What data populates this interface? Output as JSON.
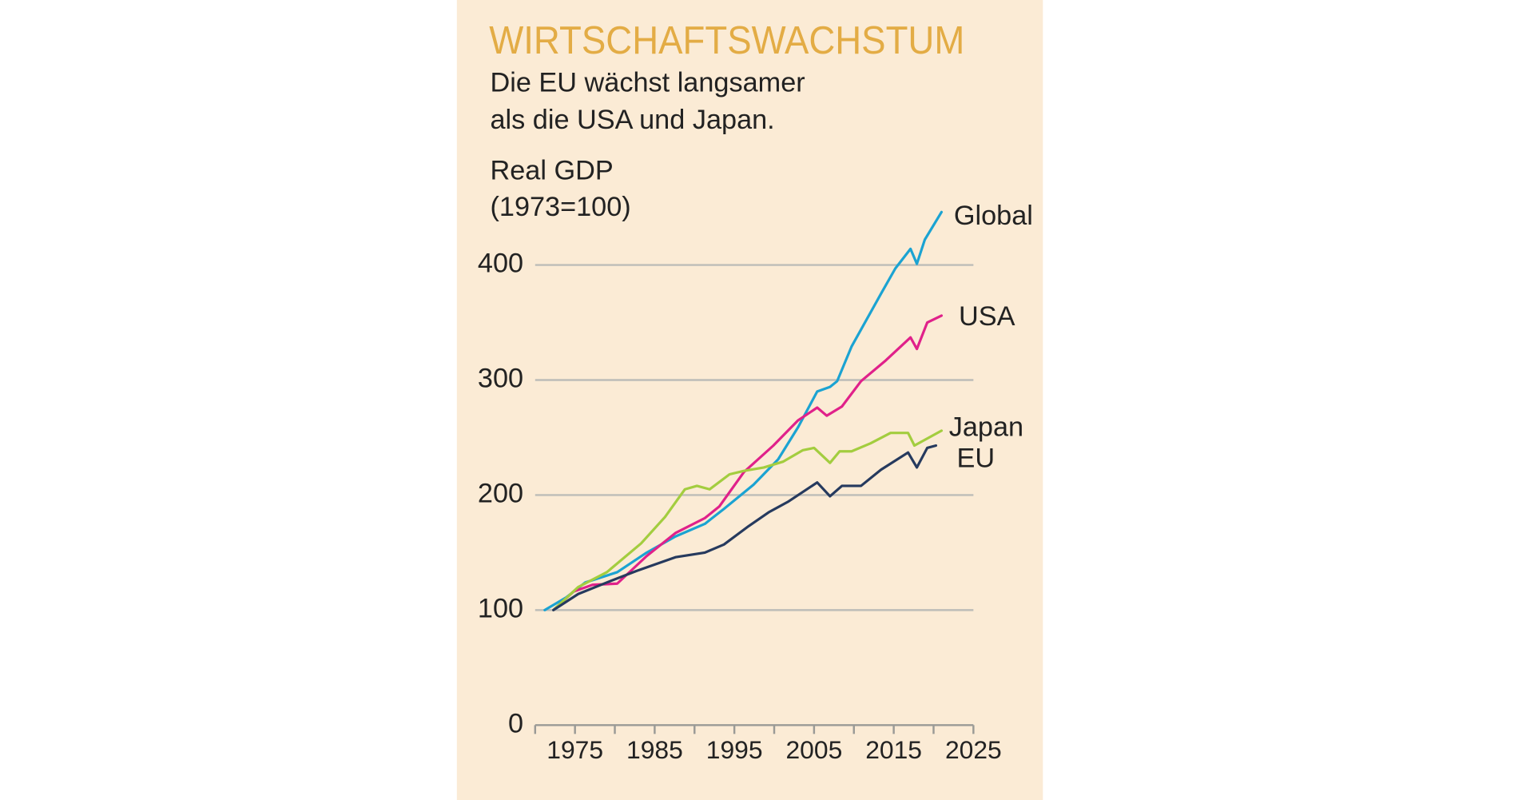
{
  "chart_data": {
    "type": "line",
    "title": "WIRTSCHAFTSWACHSTUM",
    "subtitle": [
      "Die EU wächst langsamer",
      "als die USA und Japan."
    ],
    "ylabel": [
      "Real GDP",
      "(1973=100)"
    ],
    "xlim": [
      1970,
      2025
    ],
    "xticks": [
      1975,
      1985,
      1995,
      2005,
      2015,
      2025
    ],
    "ylim": [
      0,
      450
    ],
    "yticks": [
      0,
      100,
      200,
      300,
      400
    ],
    "grid": true,
    "series": [
      {
        "name": "Global",
        "color": "#1ba3d2",
        "x": [
          1971.2,
          1973.9,
          1976.3,
          1980.3,
          1984,
          1987.6,
          1991.3,
          1993.7,
          1997.4,
          2000.5,
          2003,
          2005.4,
          2007,
          2007.9,
          2009.7,
          2013.4,
          2015.2,
          2017.1,
          2017.9,
          2018.9,
          2021
        ],
        "values": [
          100,
          111,
          124,
          133,
          150,
          164,
          175,
          188,
          209,
          231,
          259,
          290,
          294,
          299,
          329,
          375,
          397,
          414,
          401,
          422,
          446
        ]
      },
      {
        "name": "USA",
        "color": "#e0218a",
        "x": [
          1972.3,
          1974.8,
          1977.2,
          1980.3,
          1984,
          1987.6,
          1991.3,
          1993.1,
          1996.2,
          1999.9,
          2003,
          2005.4,
          2006.6,
          2008.5,
          2010.9,
          2014,
          2017.1,
          2017.9,
          2019.2,
          2021
        ],
        "values": [
          100,
          116,
          122,
          123,
          147,
          167,
          180,
          190,
          220,
          243,
          265,
          276,
          269,
          277,
          299,
          317,
          337,
          327,
          350,
          356
        ]
      },
      {
        "name": "Japan",
        "color": "#a3cd3f",
        "x": [
          1972.3,
          1975.4,
          1979,
          1983.3,
          1986.3,
          1988.8,
          1990.3,
          1991.9,
          1994.4,
          1996.2,
          1998.7,
          2001.1,
          2003.6,
          2005,
          2007,
          2008.2,
          2009.7,
          2012.1,
          2014.6,
          2016.8,
          2017.6,
          2021
        ],
        "values": [
          100,
          120,
          133,
          158,
          181,
          205,
          208,
          205,
          218,
          221,
          224,
          229,
          239,
          241,
          228,
          238,
          238,
          245,
          254,
          254,
          243,
          256
        ]
      },
      {
        "name": "EU",
        "color": "#263a5e",
        "x": [
          1972.3,
          1975.4,
          1979,
          1982.7,
          1987.6,
          1991.3,
          1993.7,
          1996.8,
          1999.3,
          2001.7,
          2005.4,
          2007,
          2008.5,
          2010.9,
          2013.4,
          2016.8,
          2017.9,
          2019.2,
          2020.3
        ],
        "values": [
          100,
          114,
          124,
          134,
          146,
          150,
          157,
          173,
          185,
          194,
          211,
          199,
          208,
          208,
          222,
          237,
          224,
          241,
          243
        ]
      }
    ]
  }
}
